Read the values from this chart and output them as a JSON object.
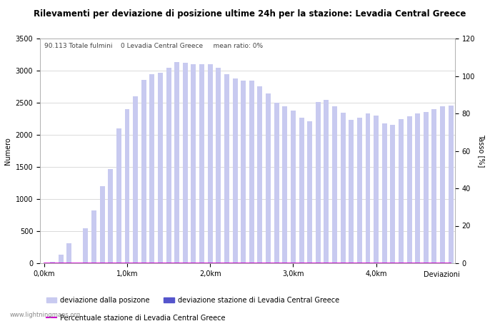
{
  "title": "Rilevamenti per deviazione di posizione ultime 24h per la stazione: Levadia Central Greece",
  "subtitle": "90.113 Totale fulmini    0 Levadia Central Greece     mean ratio: 0%",
  "xlabel": "Deviazioni",
  "ylabel_left": "Numero",
  "ylabel_right": "Tasso [%]",
  "bar_color_light": "#c8caf0",
  "bar_color_dark": "#5555cc",
  "line_color": "#cc00cc",
  "watermark": "www.lightningmaps.org",
  "xtick_labels": [
    "0,0km",
    "1,0km",
    "2,0km",
    "3,0km",
    "4,0km"
  ],
  "xtick_positions": [
    0,
    10,
    20,
    30,
    40
  ],
  "ylim_left": [
    0,
    3500
  ],
  "ylim_right": [
    0,
    120
  ],
  "yticks_left": [
    0,
    500,
    1000,
    1500,
    2000,
    2500,
    3000,
    3500
  ],
  "yticks_right": [
    0,
    20,
    40,
    60,
    80,
    100,
    120
  ],
  "bar_values": [
    0,
    20,
    130,
    310,
    0,
    550,
    820,
    1200,
    1470,
    2100,
    2400,
    2600,
    2860,
    2950,
    2970,
    3050,
    3130,
    3120,
    3100,
    3100,
    3100,
    3050,
    2950,
    2880,
    2840,
    2850,
    2760,
    2650,
    2500,
    2440,
    2380,
    2270,
    2210,
    2510,
    2540,
    2440,
    2340,
    2230,
    2270,
    2330,
    2300,
    2180,
    2160,
    2240,
    2290,
    2330,
    2360,
    2400,
    2440,
    2460
  ],
  "station_bar_values": [
    0,
    0,
    0,
    0,
    0,
    0,
    0,
    0,
    0,
    0,
    0,
    0,
    0,
    0,
    0,
    0,
    0,
    0,
    0,
    0,
    0,
    0,
    0,
    0,
    0,
    0,
    0,
    0,
    0,
    0,
    0,
    0,
    0,
    0,
    0,
    0,
    0,
    0,
    0,
    0,
    0,
    0,
    0,
    0,
    0,
    0,
    0,
    0,
    0,
    0
  ],
  "percentage_values": [
    0,
    0,
    0,
    0,
    0,
    0,
    0,
    0,
    0,
    0,
    0,
    0,
    0,
    0,
    0,
    0,
    0,
    0,
    0,
    0,
    0,
    0,
    0,
    0,
    0,
    0,
    0,
    0,
    0,
    0,
    0,
    0,
    0,
    0,
    0,
    0,
    0,
    0,
    0,
    0,
    0,
    0,
    0,
    0,
    0,
    0,
    0,
    0,
    0,
    0
  ],
  "legend_light_label": "deviazione dalla posizone",
  "legend_dark_label": "deviazione stazione di Levadia Central Greece",
  "legend_line_label": "Percentuale stazione di Levadia Central Greece",
  "background_color": "#ffffff",
  "grid_color": "#cccccc",
  "n_bars": 50
}
